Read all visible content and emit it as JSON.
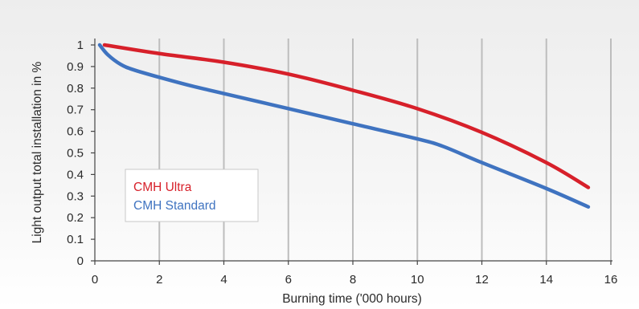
{
  "chart_data": {
    "type": "line",
    "title": "",
    "xlabel": "Burning time ('000 hours)",
    "ylabel": "Light output total installation in %",
    "xlim": [
      0,
      16
    ],
    "ylim": [
      0,
      1
    ],
    "x_ticks": [
      "0",
      "2",
      "4",
      "6",
      "8",
      "10",
      "12",
      "14",
      "16"
    ],
    "y_ticks": [
      "0",
      "0.1",
      "0.2",
      "0.3",
      "0.4",
      "0.5",
      "0.6",
      "0.7",
      "0.8",
      "0.9",
      "1"
    ],
    "grid": "vertical",
    "legend_position": "lower-left",
    "series": [
      {
        "name": "CMH Ultra",
        "color": "#d7202a",
        "x": [
          0.3,
          2,
          4,
          6,
          8,
          10,
          12,
          14,
          15.3
        ],
        "y": [
          1.0,
          0.96,
          0.92,
          0.865,
          0.79,
          0.705,
          0.595,
          0.455,
          0.34
        ]
      },
      {
        "name": "CMH Standard",
        "color": "#3f73c0",
        "x": [
          0.15,
          0.4,
          0.8,
          1.2,
          2,
          3,
          4,
          6,
          8,
          10,
          10.8,
          12,
          14,
          15.3
        ],
        "y": [
          1.0,
          0.955,
          0.91,
          0.885,
          0.85,
          0.81,
          0.775,
          0.705,
          0.635,
          0.565,
          0.53,
          0.455,
          0.335,
          0.25
        ]
      }
    ]
  }
}
